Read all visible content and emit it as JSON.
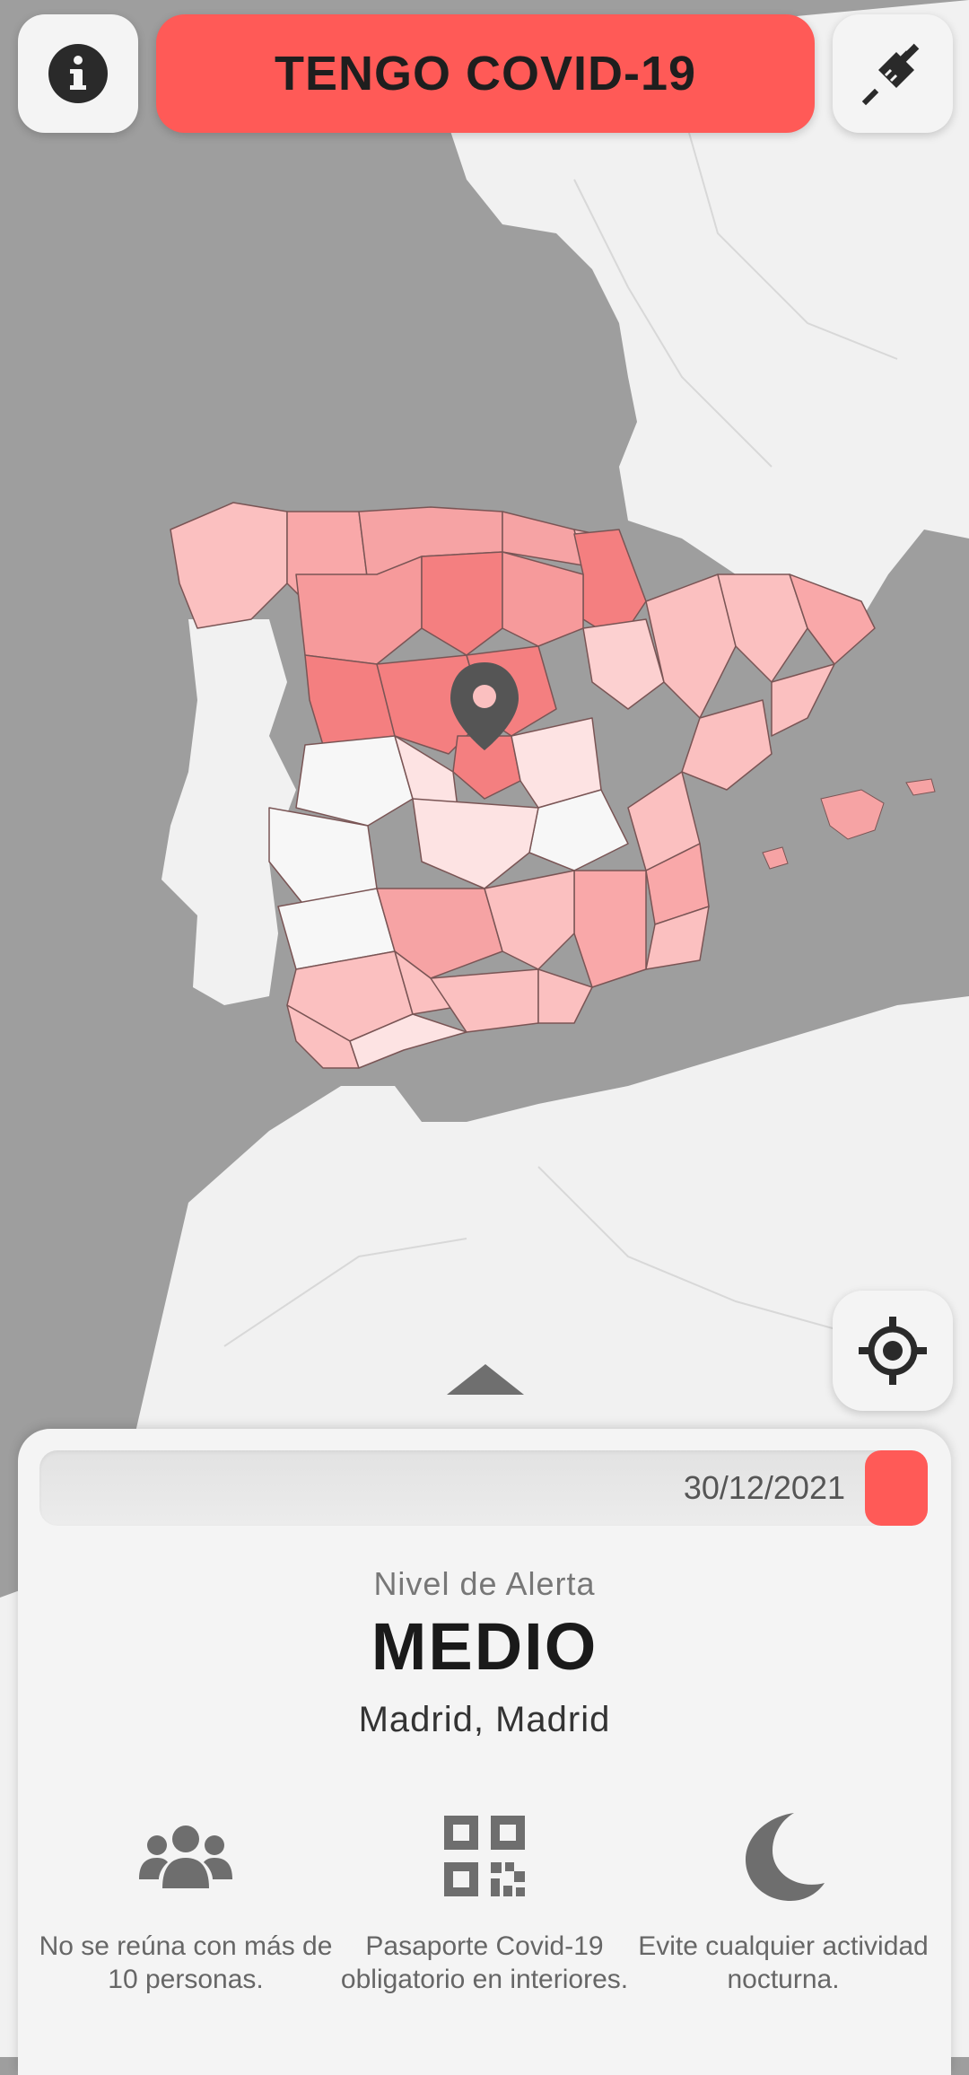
{
  "header": {
    "covid_button_label": "TENGO COVID-19",
    "info_icon": "info-icon",
    "vaccine_icon": "syringe-icon"
  },
  "map": {
    "marker_icon": "map-pin-icon",
    "locate_icon": "crosshair-icon",
    "alert_colors": {
      "high": "#f47f80",
      "medium": "#fbc0c0",
      "low": "#fde3e3",
      "none": "#f7f7f7"
    },
    "sea_color": "#9e9e9e",
    "land_color": "#f1f1f1"
  },
  "panel": {
    "date": "30/12/2021",
    "accent_color": "#ff5a57",
    "alert_label": "Nivel de Alerta",
    "alert_level": "MEDIO",
    "location": "Madrid, Madrid",
    "rules": [
      {
        "icon": "group-icon",
        "text": "No se reúna con más de 10 personas."
      },
      {
        "icon": "qr-code-icon",
        "text": "Pasaporte Covid-19 obligatorio en interiores."
      },
      {
        "icon": "moon-icon",
        "text": "Evite cualquier actividad nocturna."
      }
    ]
  }
}
